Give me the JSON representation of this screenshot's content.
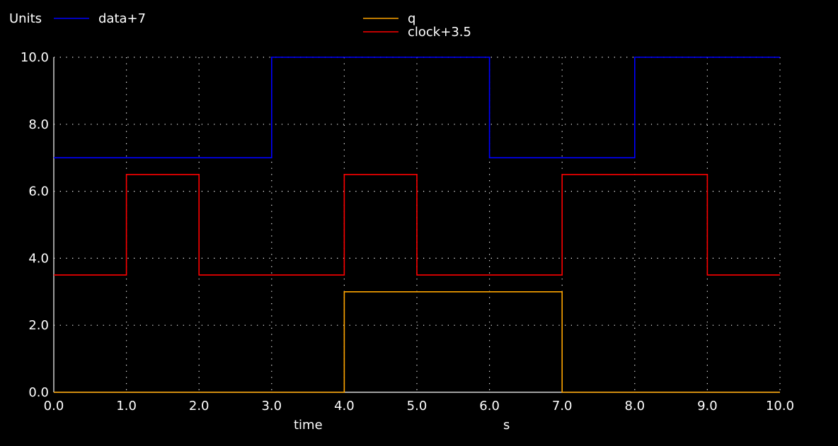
{
  "chart_data": {
    "type": "line",
    "step": true,
    "units_label": "Units",
    "xlabel": "time",
    "xunit": "s",
    "xlim": [
      0,
      10
    ],
    "ylim": [
      0,
      10
    ],
    "xticks": [
      "0.0",
      "1.0",
      "2.0",
      "3.0",
      "4.0",
      "5.0",
      "6.0",
      "7.0",
      "8.0",
      "9.0",
      "10.0"
    ],
    "yticks": [
      "0.0",
      "2.0",
      "4.0",
      "6.0",
      "8.0",
      "10.0"
    ],
    "xtick_values": [
      0,
      1,
      2,
      3,
      4,
      5,
      6,
      7,
      8,
      9,
      10
    ],
    "ytick_values": [
      0,
      2,
      4,
      6,
      8,
      10
    ],
    "grid": true,
    "series": [
      {
        "name": "data+7",
        "color": "#0000ff",
        "x": [
          0,
          3,
          3,
          6,
          6,
          8,
          8,
          10
        ],
        "y": [
          7,
          7,
          10,
          10,
          7,
          7,
          10,
          10
        ]
      },
      {
        "name": "q",
        "color": "#ffa500",
        "x": [
          0,
          4,
          4,
          7,
          7,
          10
        ],
        "y": [
          0,
          0,
          3,
          3,
          0,
          0
        ]
      },
      {
        "name": "clock+3.5",
        "color": "#ff0000",
        "x": [
          0,
          1,
          1,
          2,
          2,
          4,
          4,
          5,
          5,
          7,
          7,
          9,
          9,
          10
        ],
        "y": [
          3.5,
          3.5,
          6.5,
          6.5,
          3.5,
          3.5,
          6.5,
          6.5,
          3.5,
          3.5,
          6.5,
          6.5,
          3.5,
          3.5
        ]
      }
    ]
  }
}
